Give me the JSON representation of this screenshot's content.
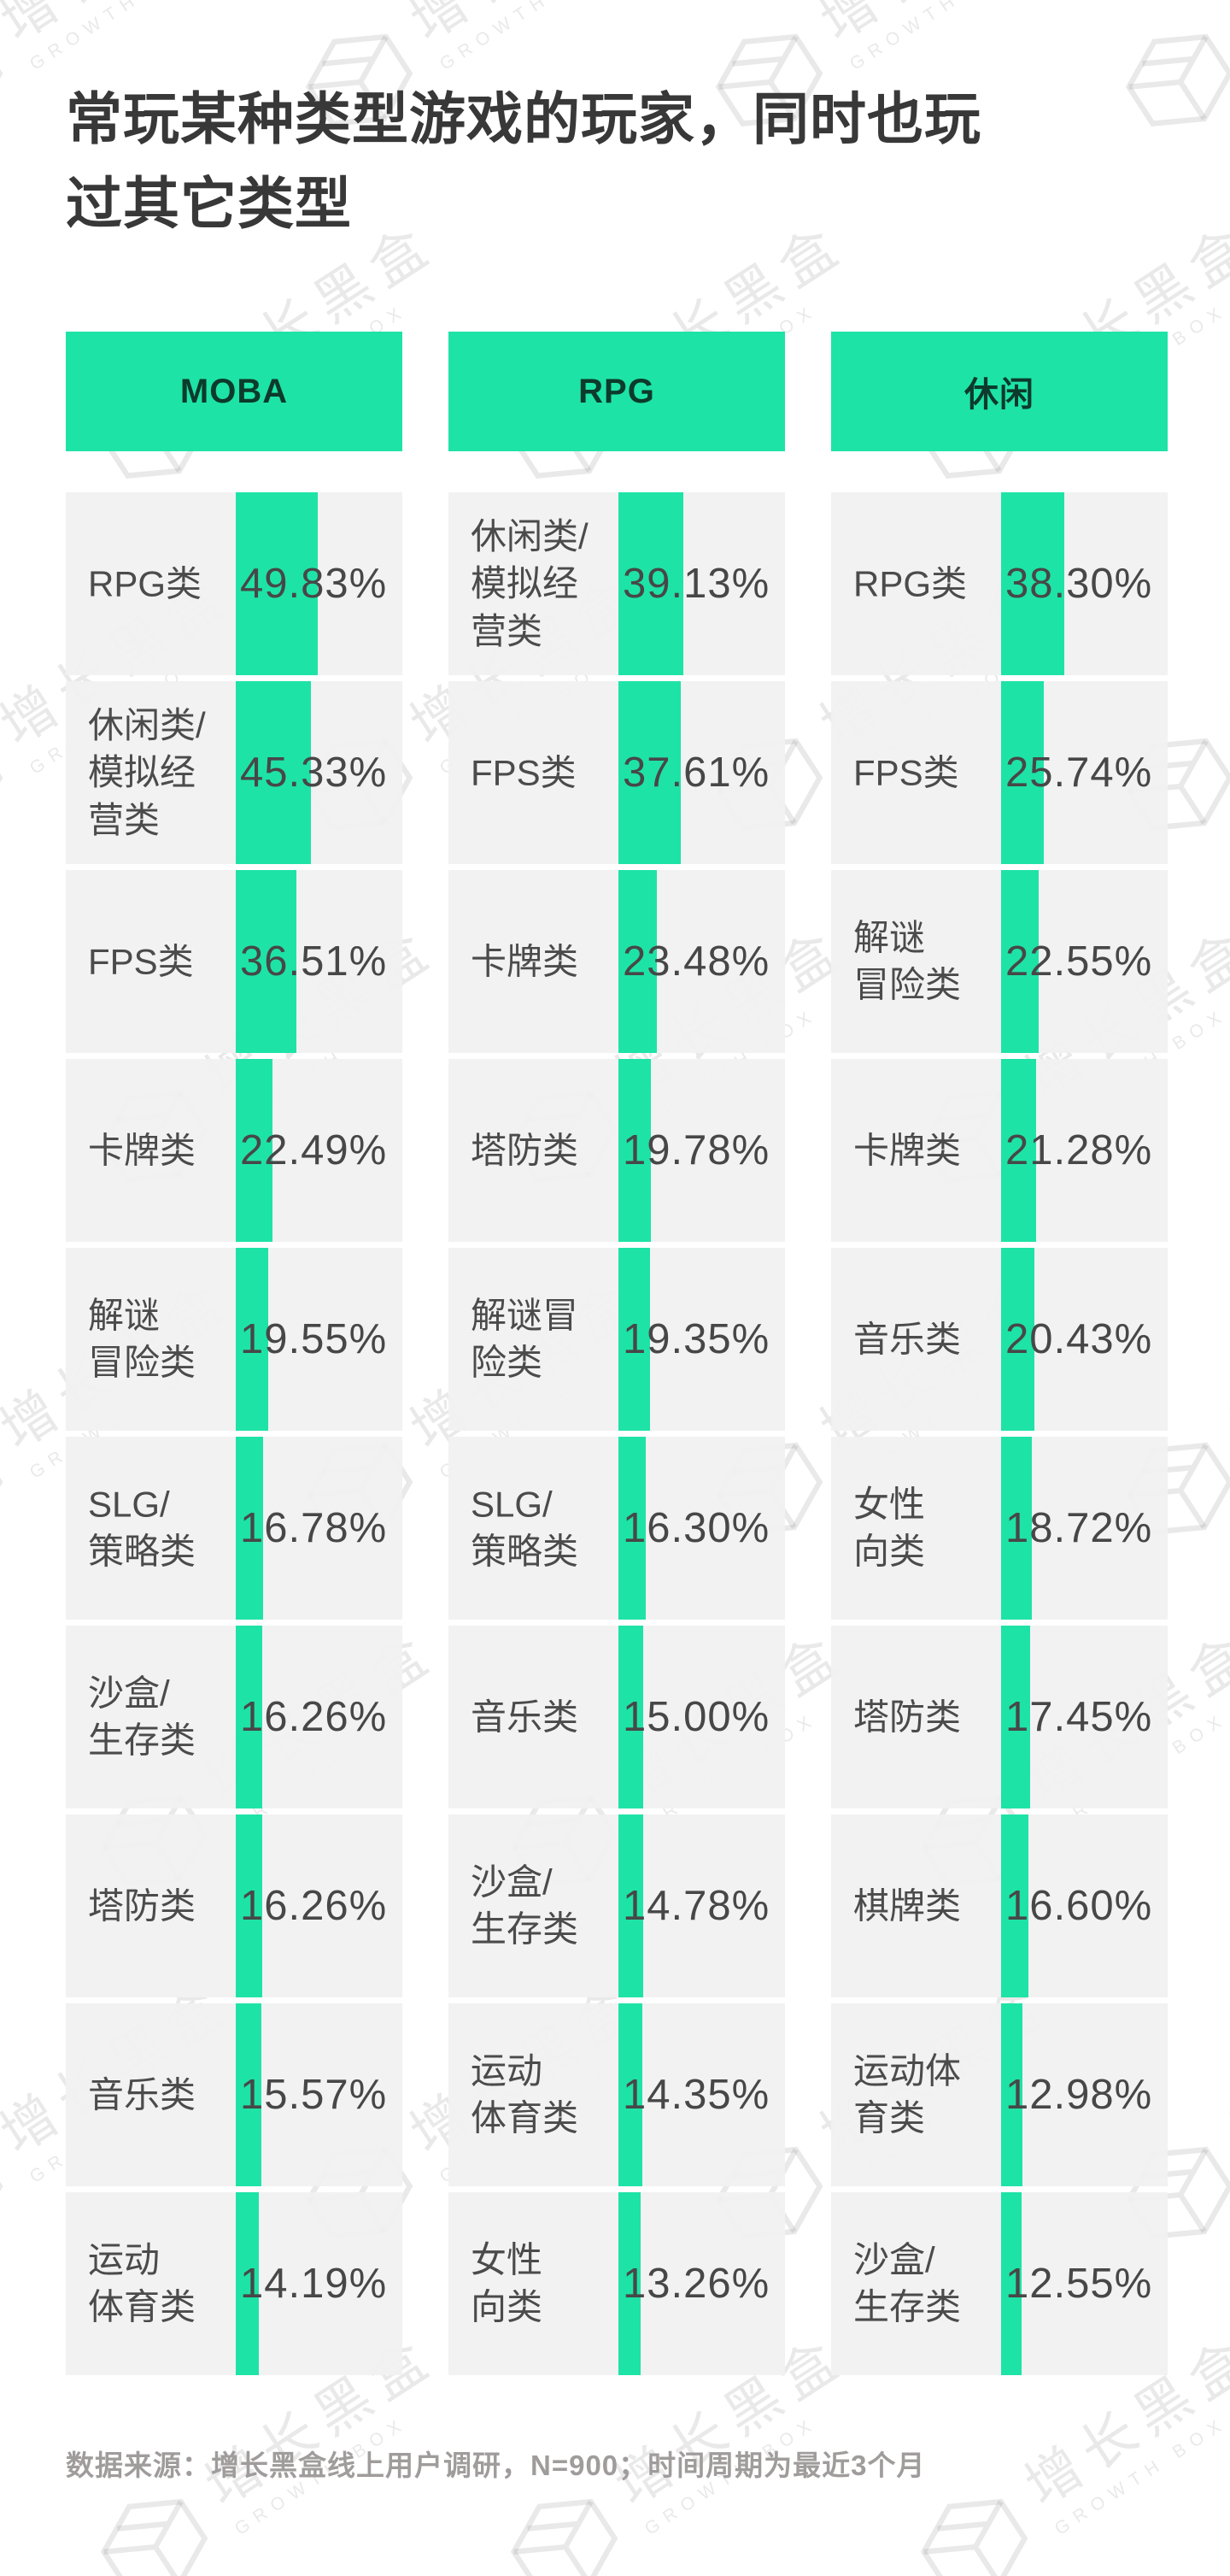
{
  "page": {
    "title_line1": "常玩某种类型游戏的玩家，同时也玩",
    "title_line2": "过其它类型",
    "footer": "数据来源：增长黑盒线上用户调研，N=900；时间周期为最近3个月"
  },
  "watermark": {
    "cjk": "增长黑盒",
    "latin": "GROWTH BOX"
  },
  "colors": {
    "accent_green": "#1EE3A6",
    "header_text": "#0C3A2B",
    "row_background": "#F1F1F1",
    "title_text": "#383838",
    "label_text": "#4B4B4B",
    "footer_text": "#A09C9C"
  },
  "chart_data": [
    {
      "type": "bar",
      "title": "MOBA",
      "unit": "%",
      "xlim": [
        0,
        100
      ],
      "categories": [
        "RPG类",
        "休闲类/模拟经营类",
        "FPS类",
        "卡牌类",
        "解谜冒险类",
        "SLG/策略类",
        "沙盒/生存类",
        "塔防类",
        "音乐类",
        "运动体育类"
      ],
      "values": [
        49.83,
        45.33,
        36.51,
        22.49,
        19.55,
        16.78,
        16.26,
        16.26,
        15.57,
        14.19
      ],
      "labels_display": [
        "RPG类",
        "休闲类/\n模拟经\n营类",
        "FPS类",
        "卡牌类",
        "解谜\n冒险类",
        "SLG/\n策略类",
        "沙盒/\n生存类",
        "塔防类",
        "音乐类",
        "运动\n体育类"
      ],
      "values_display": [
        "49.83%",
        "45.33%",
        "36.51%",
        "22.49%",
        "19.55%",
        "16.78%",
        "16.26%",
        "16.26%",
        "15.57%",
        "14.19%"
      ]
    },
    {
      "type": "bar",
      "title": "RPG",
      "unit": "%",
      "xlim": [
        0,
        100
      ],
      "categories": [
        "休闲类/模拟经营类",
        "FPS类",
        "卡牌类",
        "塔防类",
        "解谜冒险类",
        "SLG/策略类",
        "音乐类",
        "沙盒/生存类",
        "运动体育类",
        "女性向类"
      ],
      "values": [
        39.13,
        37.61,
        23.48,
        19.78,
        19.35,
        16.3,
        15.0,
        14.78,
        14.35,
        13.26
      ],
      "labels_display": [
        "休闲类/\n模拟经\n营类",
        "FPS类",
        "卡牌类",
        "塔防类",
        "解谜冒\n险类",
        "SLG/\n策略类",
        "音乐类",
        "沙盒/\n生存类",
        "运动\n体育类",
        "女性\n向类"
      ],
      "values_display": [
        "39.13%",
        "37.61%",
        "23.48%",
        "19.78%",
        "19.35%",
        "16.30%",
        "15.00%",
        "14.78%",
        "14.35%",
        "13.26%"
      ]
    },
    {
      "type": "bar",
      "title": "休闲",
      "unit": "%",
      "xlim": [
        0,
        100
      ],
      "categories": [
        "RPG类",
        "FPS类",
        "解谜冒险类",
        "卡牌类",
        "音乐类",
        "女性向类",
        "塔防类",
        "棋牌类",
        "运动体育类",
        "沙盒/生存类"
      ],
      "values": [
        38.3,
        25.74,
        22.55,
        21.28,
        20.43,
        18.72,
        17.45,
        16.6,
        12.98,
        12.55
      ],
      "labels_display": [
        "RPG类",
        "FPS类",
        "解谜\n冒险类",
        "卡牌类",
        "音乐类",
        "女性\n向类",
        "塔防类",
        "棋牌类",
        "运动体\n育类",
        "沙盒/\n生存类"
      ],
      "values_display": [
        "38.30%",
        "25.74%",
        "22.55%",
        "21.28%",
        "20.43%",
        "18.72%",
        "17.45%",
        "16.60%",
        "12.98%",
        "12.55%"
      ]
    }
  ]
}
